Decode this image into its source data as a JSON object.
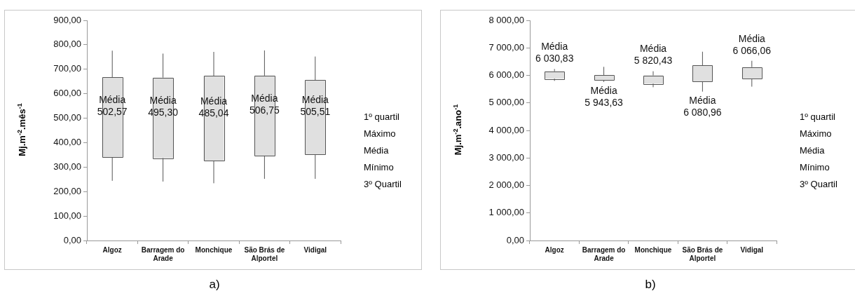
{
  "chart_data": [
    {
      "type": "box",
      "title": "a)",
      "ylabel": "Mj.m$^{-2}$.mês$^{-1}$",
      "color": "#e0e0e0",
      "grid": false,
      "legend": false,
      "categories": [
        "Algoz",
        "Barragem do Arade",
        "Monchique",
        "São Brás de Alportel",
        "Vidigal"
      ],
      "boxes": [
        {
          "low": 244,
          "q1": 339,
          "q3": 667,
          "high": 776
        },
        {
          "low": 241,
          "q1": 337,
          "q3": 666,
          "high": 764
        },
        {
          "low": 234,
          "q1": 325,
          "q3": 673,
          "high": 771
        },
        {
          "low": 252,
          "q1": 347,
          "q3": 674,
          "high": 777
        },
        {
          "low": 252,
          "q1": 351,
          "q3": 655,
          "high": 752
        }
      ],
      "ylim": [
        0,
        900
      ],
      "yticks": [
        {
          "value": 0,
          "label": "0,00"
        },
        {
          "value": 100,
          "label": "100,00"
        },
        {
          "value": 200,
          "label": "200,00"
        },
        {
          "value": 300,
          "label": "300,00"
        },
        {
          "value": 400,
          "label": "400,00"
        },
        {
          "value": 500,
          "label": "500,00"
        },
        {
          "value": 600,
          "label": "600,00"
        },
        {
          "value": 700,
          "label": "700,00"
        },
        {
          "value": 800,
          "label": "800,00"
        },
        {
          "value": 900,
          "label": "900,00"
        }
      ],
      "annotations": [
        "Média\n502,57",
        "Média\n495,30",
        "Média\n485,04",
        "Média\n506,75",
        "Média\n505,51",
        "1º quartil",
        "Máximo",
        "Média",
        "Mínimo",
        "3º Quartil"
      ]
    },
    {
      "type": "box",
      "title": "b)",
      "ylabel": "Mj.m$^{-2}$.ano$^{-1}$",
      "color": "#e0e0e0",
      "grid": false,
      "legend": false,
      "categories": [
        "Algoz",
        "Barragem do Arade",
        "Monchique",
        "São Brás de Alportel",
        "Vidigal"
      ],
      "boxes": [
        {
          "low": 5800,
          "q1": 5880,
          "q3": 6150,
          "high": 6230
        },
        {
          "low": 5760,
          "q1": 5820,
          "q3": 6010,
          "high": 6310
        },
        {
          "low": 5570,
          "q1": 5700,
          "q3": 6000,
          "high": 6150
        },
        {
          "low": 5410,
          "q1": 5770,
          "q3": 6360,
          "high": 6860
        },
        {
          "low": 5590,
          "q1": 5880,
          "q3": 6300,
          "high": 6530
        }
      ],
      "ylim": [
        0,
        8000
      ],
      "yticks": [
        {
          "value": 0,
          "label": "0,00"
        },
        {
          "value": 1000,
          "label": "1 000,00"
        },
        {
          "value": 2000,
          "label": "2 000,00"
        },
        {
          "value": 3000,
          "label": "3 000,00"
        },
        {
          "value": 4000,
          "label": "4 000,00"
        },
        {
          "value": 5000,
          "label": "5 000,00"
        },
        {
          "value": 6000,
          "label": "6 000,00"
        },
        {
          "value": 7000,
          "label": "7 000,00"
        },
        {
          "value": 8000,
          "label": "8 000,00"
        }
      ],
      "annotations": [
        "Média\n6 030,83",
        "Média\n5 943,63",
        "Média\n5 820,43",
        "Média\n6 080,96",
        "Média\n6 066,06",
        "1º quartil",
        "Máximo",
        "Média",
        "Mínimo",
        "3º Quartil"
      ]
    }
  ]
}
